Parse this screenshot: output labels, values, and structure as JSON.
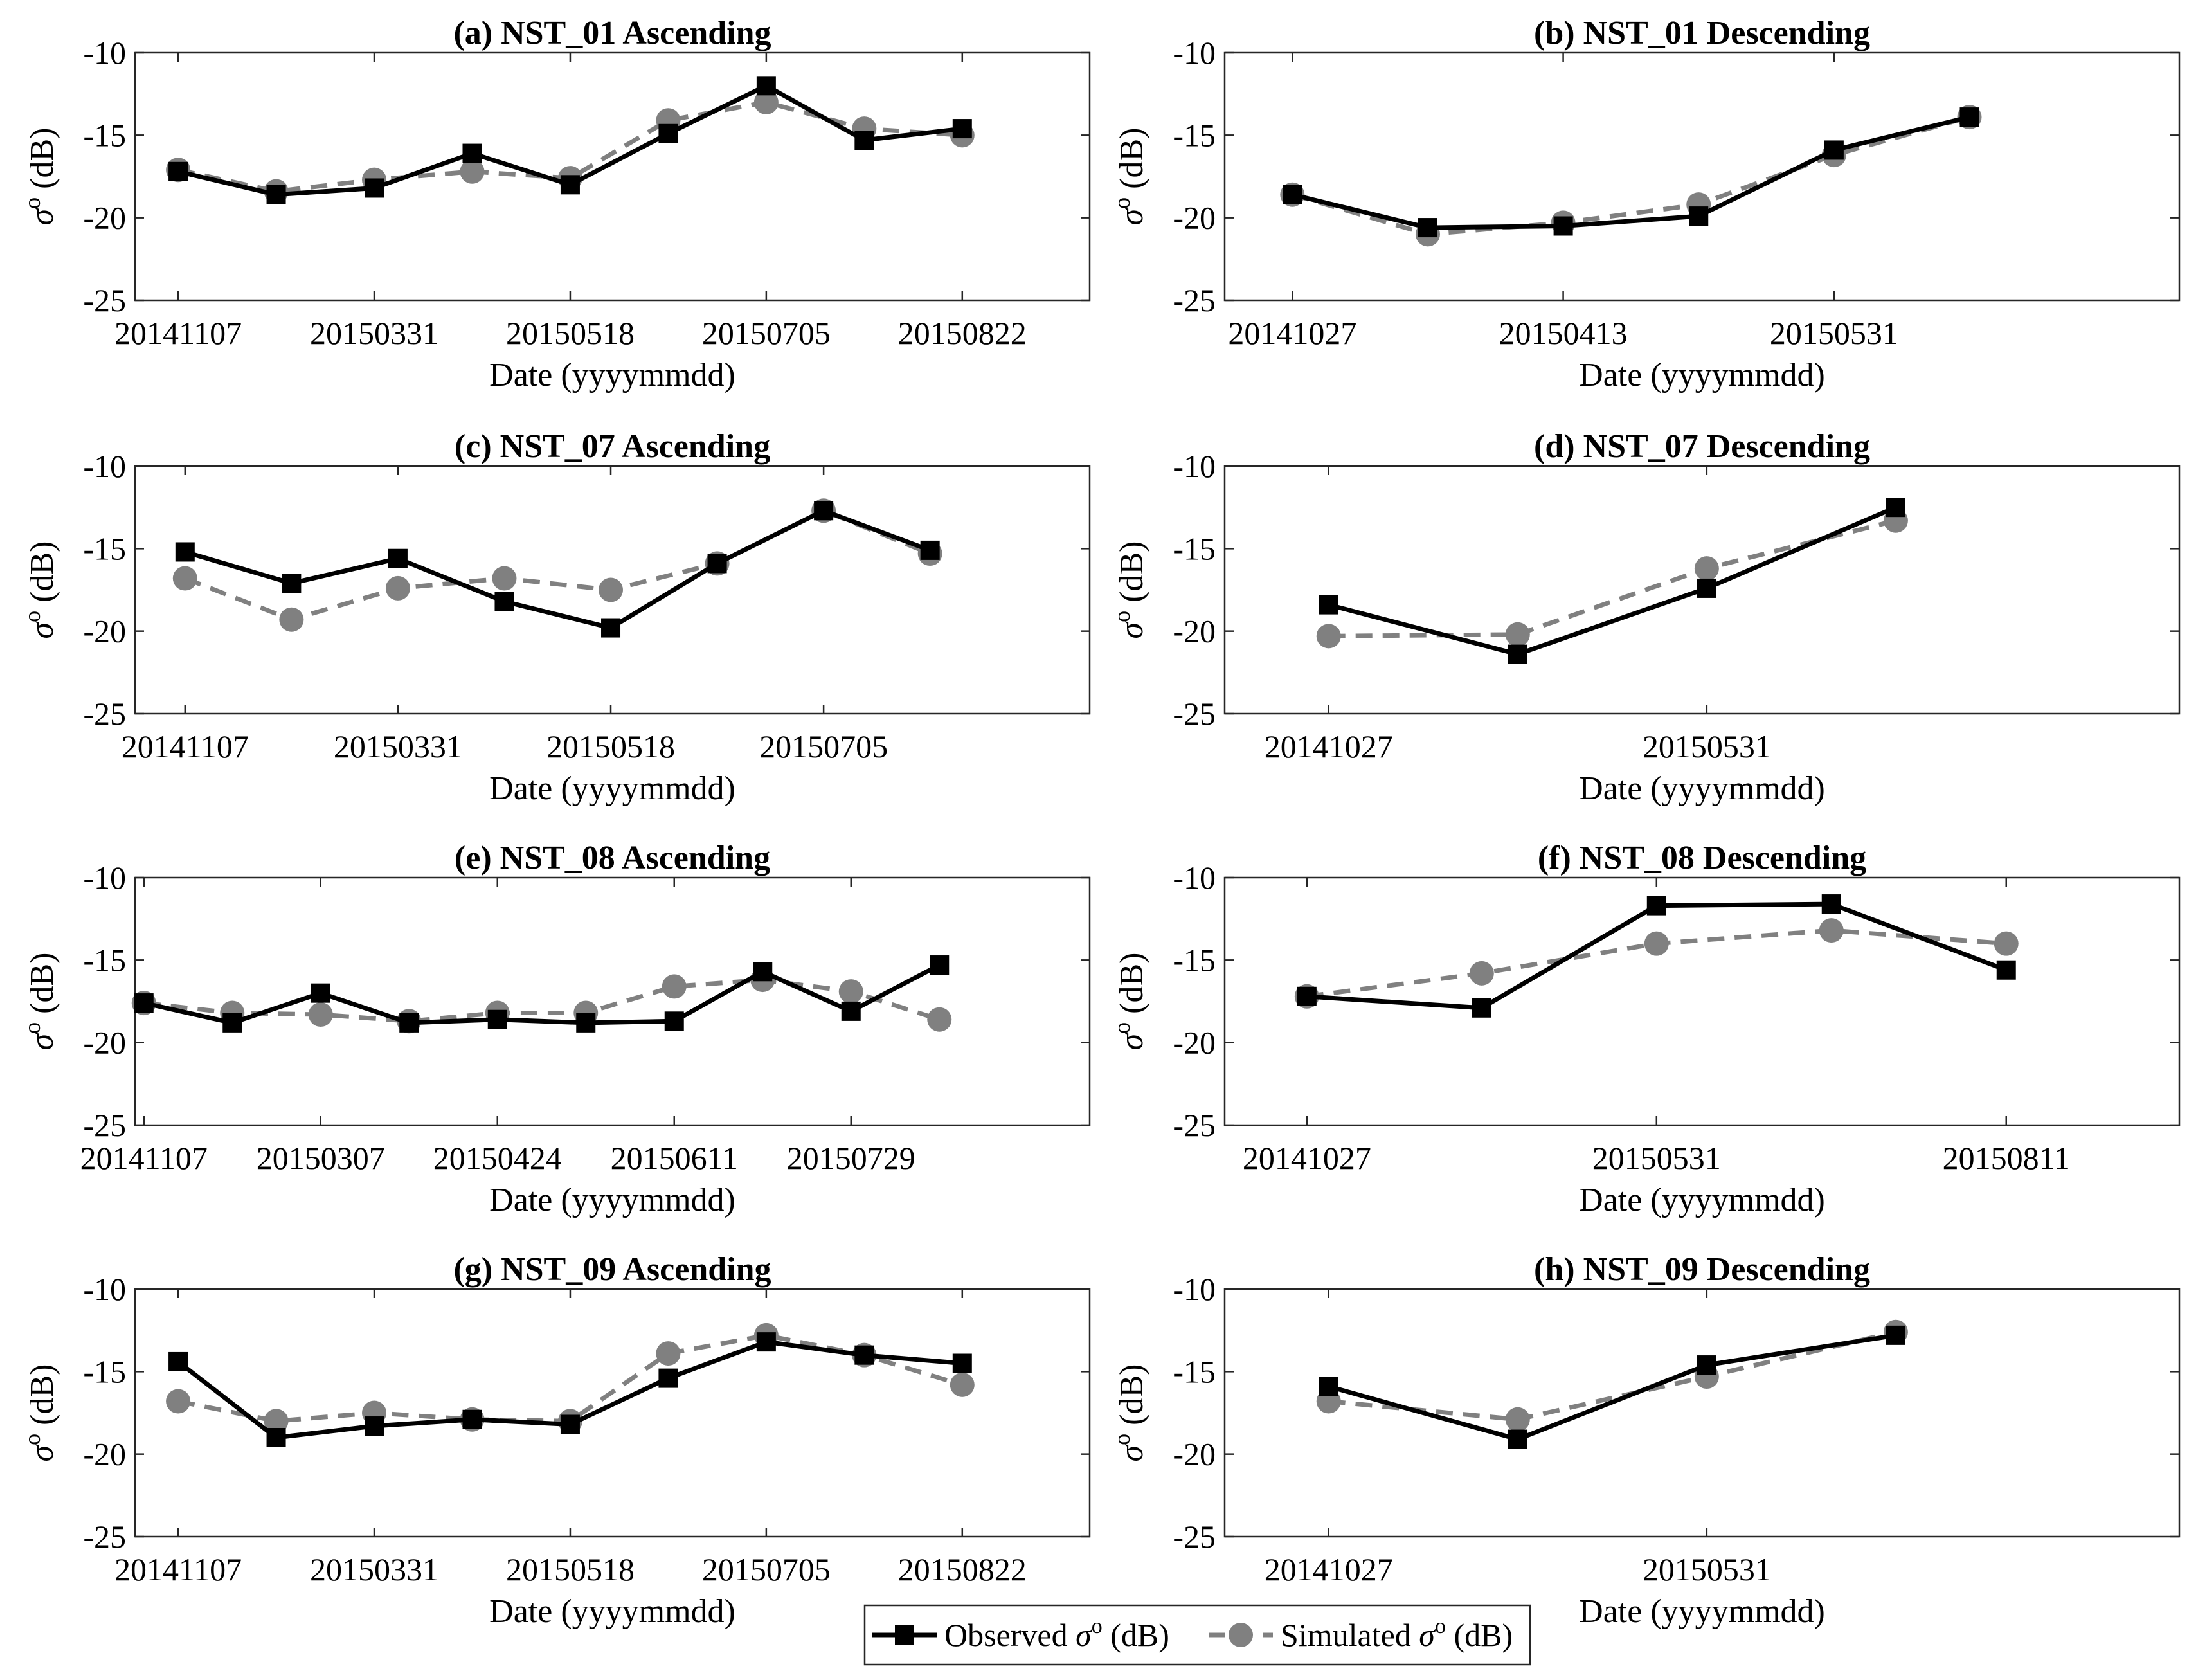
{
  "figure": {
    "xlabel": "Date (yyyymmdd)",
    "ylabel_symbol": "σ",
    "ylabel_superscript": "o",
    "ylabel_unit": " (dB)",
    "legend": [
      {
        "name": "Observed",
        "symbol": "σ",
        "superscript": "o",
        "unit": " (dB)",
        "color": "#000000",
        "marker": "square",
        "dash": "solid"
      },
      {
        "name": "Simulated",
        "symbol": "σ",
        "superscript": "o",
        "unit": " (dB)",
        "color": "#808080",
        "marker": "circle",
        "dash": "dashed"
      }
    ]
  },
  "chart_data": [
    {
      "type": "line",
      "title": "(a) NST_01 Ascending",
      "xlabel": "Date (yyyymmdd)",
      "ylabel": "σo (dB)",
      "ylim": [
        -25,
        -10
      ],
      "yticks": [
        -10,
        -15,
        -20,
        -25
      ],
      "xlim": [
        0.56,
        10.3
      ],
      "xticks": [
        {
          "x": 1,
          "label": "20141107"
        },
        {
          "x": 3,
          "label": "20150331"
        },
        {
          "x": 5,
          "label": "20150518"
        },
        {
          "x": 7,
          "label": "20150705"
        },
        {
          "x": 9,
          "label": "20150822"
        }
      ],
      "x": [
        1,
        2,
        3,
        4,
        5,
        6,
        7,
        8,
        9
      ],
      "series": [
        {
          "name": "Observed",
          "values": [
            -17.2,
            -18.6,
            -18.2,
            -16.1,
            -18.0,
            -14.9,
            -12.0,
            -15.3,
            -14.6
          ]
        },
        {
          "name": "Simulated",
          "values": [
            -17.1,
            -18.4,
            -17.7,
            -17.2,
            -17.6,
            -14.1,
            -13.0,
            -14.6,
            -15.0
          ]
        }
      ]
    },
    {
      "type": "line",
      "title": "(b) NST_01 Descending",
      "xlabel": "Date (yyyymmdd)",
      "ylabel": "σo (dB)",
      "ylim": [
        -25,
        -10
      ],
      "yticks": [
        -10,
        -15,
        -20,
        -25
      ],
      "xlim": [
        0.5,
        7.55
      ],
      "xticks": [
        {
          "x": 1,
          "label": "20141027"
        },
        {
          "x": 3,
          "label": "20150413"
        },
        {
          "x": 5,
          "label": "20150531"
        }
      ],
      "x": [
        1,
        2,
        3,
        4,
        5,
        6
      ],
      "series": [
        {
          "name": "Observed",
          "values": [
            -18.6,
            -20.6,
            -20.5,
            -19.9,
            -15.9,
            -13.9
          ]
        },
        {
          "name": "Simulated",
          "values": [
            -18.6,
            -21.0,
            -20.3,
            -19.2,
            -16.2,
            -13.9
          ]
        }
      ]
    },
    {
      "type": "line",
      "title": "(c) NST_07 Ascending",
      "xlabel": "Date (yyyymmdd)",
      "ylabel": "σo (dB)",
      "ylim": [
        -25,
        -10
      ],
      "yticks": [
        -10,
        -15,
        -20,
        -25
      ],
      "xlim": [
        0.53,
        9.5
      ],
      "xticks": [
        {
          "x": 1,
          "label": "20141107"
        },
        {
          "x": 3,
          "label": "20150331"
        },
        {
          "x": 5,
          "label": "20150518"
        },
        {
          "x": 7,
          "label": "20150705"
        }
      ],
      "x": [
        1,
        2,
        3,
        4,
        5,
        6,
        7,
        8
      ],
      "series": [
        {
          "name": "Observed",
          "values": [
            -15.2,
            -17.1,
            -15.6,
            -18.2,
            -19.8,
            -15.9,
            -12.7,
            -15.1
          ]
        },
        {
          "name": "Simulated",
          "values": [
            -16.8,
            -19.3,
            -17.4,
            -16.8,
            -17.5,
            -15.9,
            -12.7,
            -15.3
          ]
        }
      ]
    },
    {
      "type": "line",
      "title": "(d) NST_07 Descending",
      "xlabel": "Date (yyyymmdd)",
      "ylabel": "σo (dB)",
      "ylim": [
        -25,
        -10
      ],
      "yticks": [
        -10,
        -15,
        -20,
        -25
      ],
      "xlim": [
        0.45,
        5.5
      ],
      "xticks": [
        {
          "x": 1,
          "label": "20141027"
        },
        {
          "x": 3,
          "label": "20150531"
        }
      ],
      "x": [
        1,
        2,
        3,
        4
      ],
      "series": [
        {
          "name": "Observed",
          "values": [
            -18.4,
            -21.4,
            -17.4,
            -12.5
          ]
        },
        {
          "name": "Simulated",
          "values": [
            -20.3,
            -20.2,
            -16.2,
            -13.3
          ]
        }
      ]
    },
    {
      "type": "line",
      "title": "(e) NST_08 Ascending",
      "xlabel": "Date (yyyymmdd)",
      "ylabel": "σo (dB)",
      "ylim": [
        -25,
        -10
      ],
      "yticks": [
        -10,
        -15,
        -20,
        -25
      ],
      "xlim": [
        0.9,
        11.7
      ],
      "xticks": [
        {
          "x": 1,
          "label": "20141107"
        },
        {
          "x": 3,
          "label": "20150307"
        },
        {
          "x": 5,
          "label": "20150424"
        },
        {
          "x": 7,
          "label": "20150611"
        },
        {
          "x": 9,
          "label": "20150729"
        }
      ],
      "x": [
        1,
        2,
        3,
        4,
        5,
        6,
        7,
        8,
        9,
        10
      ],
      "series": [
        {
          "name": "Observed",
          "values": [
            -17.6,
            -18.8,
            -17.0,
            -18.8,
            -18.6,
            -18.8,
            -18.7,
            -15.7,
            -18.1,
            -15.3
          ]
        },
        {
          "name": "Simulated",
          "values": [
            -17.6,
            -18.2,
            -18.3,
            -18.7,
            -18.2,
            -18.2,
            -16.6,
            -16.2,
            -16.9,
            -18.6
          ]
        }
      ]
    },
    {
      "type": "line",
      "title": "(f) NST_08 Descending",
      "xlabel": "Date (yyyymmdd)",
      "ylabel": "σo (dB)",
      "ylim": [
        -25,
        -10
      ],
      "yticks": [
        -10,
        -15,
        -20,
        -25
      ],
      "xlim": [
        0.53,
        5.99
      ],
      "xticks": [
        {
          "x": 1,
          "label": "20141027"
        },
        {
          "x": 3,
          "label": "20150531"
        },
        {
          "x": 5,
          "label": "20150811"
        }
      ],
      "x": [
        1,
        2,
        3,
        4,
        5
      ],
      "series": [
        {
          "name": "Observed",
          "values": [
            -17.2,
            -17.9,
            -11.7,
            -11.6,
            -15.6
          ]
        },
        {
          "name": "Simulated",
          "values": [
            -17.2,
            -15.8,
            -14.0,
            -13.2,
            -14.0
          ]
        }
      ]
    },
    {
      "type": "line",
      "title": "(g) NST_09 Ascending",
      "xlabel": "Date (yyyymmdd)",
      "ylabel": "σo (dB)",
      "ylim": [
        -25,
        -10
      ],
      "yticks": [
        -10,
        -15,
        -20,
        -25
      ],
      "xlim": [
        0.56,
        10.3
      ],
      "xticks": [
        {
          "x": 1,
          "label": "20141107"
        },
        {
          "x": 3,
          "label": "20150331"
        },
        {
          "x": 5,
          "label": "20150518"
        },
        {
          "x": 7,
          "label": "20150705"
        },
        {
          "x": 9,
          "label": "20150822"
        }
      ],
      "x": [
        1,
        2,
        3,
        4,
        5,
        6,
        7,
        8,
        9
      ],
      "series": [
        {
          "name": "Observed",
          "values": [
            -14.4,
            -19.0,
            -18.3,
            -17.9,
            -18.2,
            -15.4,
            -13.2,
            -14.0,
            -14.5
          ]
        },
        {
          "name": "Simulated",
          "values": [
            -16.8,
            -18.0,
            -17.5,
            -17.9,
            -18.0,
            -13.9,
            -12.8,
            -14.0,
            -15.8
          ]
        }
      ]
    },
    {
      "type": "line",
      "title": "(h) NST_09 Descending",
      "xlabel": "Date (yyyymmdd)",
      "ylabel": "σo (dB)",
      "ylim": [
        -25,
        -10
      ],
      "yticks": [
        -10,
        -15,
        -20,
        -25
      ],
      "xlim": [
        0.45,
        5.5
      ],
      "xticks": [
        {
          "x": 1,
          "label": "20141027"
        },
        {
          "x": 3,
          "label": "20150531"
        }
      ],
      "x": [
        1,
        2,
        3,
        4
      ],
      "series": [
        {
          "name": "Observed",
          "values": [
            -15.9,
            -19.1,
            -14.6,
            -12.8
          ]
        },
        {
          "name": "Simulated",
          "values": [
            -16.8,
            -17.9,
            -15.3,
            -12.6
          ]
        }
      ]
    }
  ]
}
